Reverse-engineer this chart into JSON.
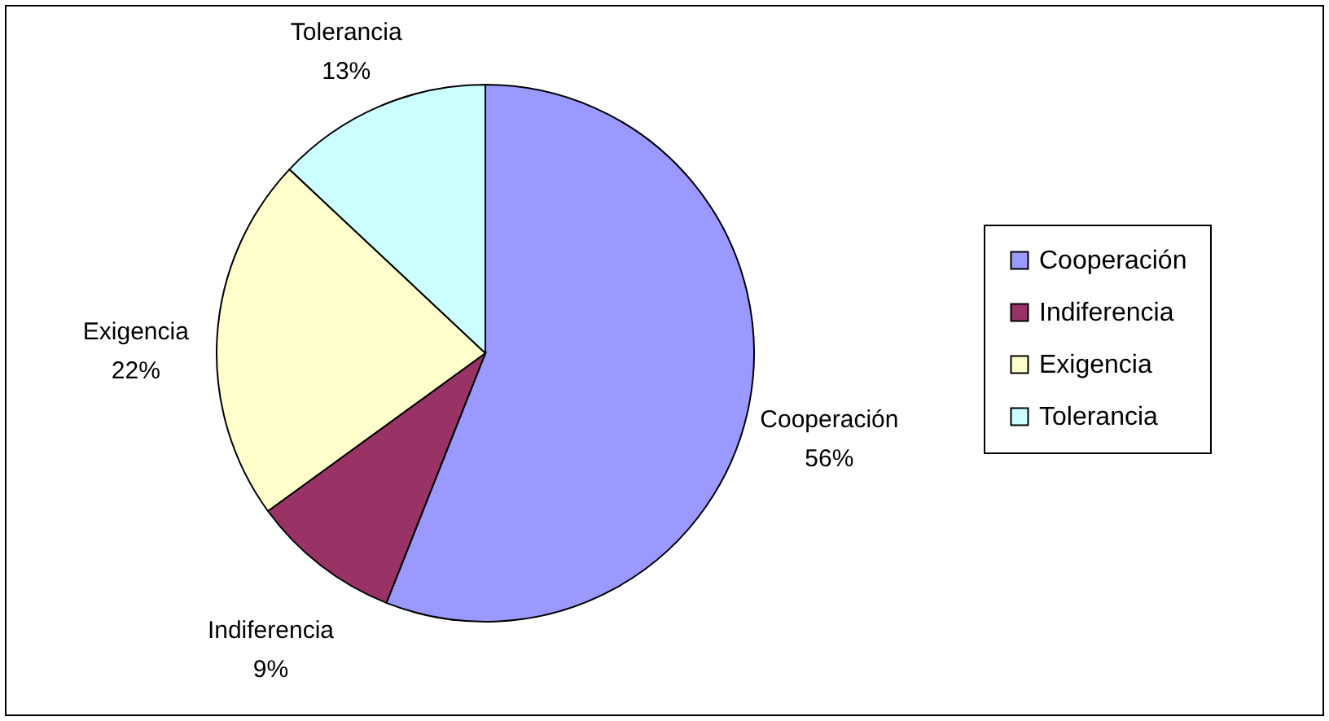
{
  "chart_data": {
    "type": "pie",
    "categories": [
      "Cooperación",
      "Indiferencia",
      "Exigencia",
      "Tolerancia"
    ],
    "values": [
      56,
      9,
      22,
      13
    ],
    "colors": [
      "#9999ff",
      "#993366",
      "#ffffcc",
      "#ccffff"
    ],
    "value_labels": [
      "56%",
      "9%",
      "22%",
      "13%"
    ],
    "legend": "right"
  }
}
